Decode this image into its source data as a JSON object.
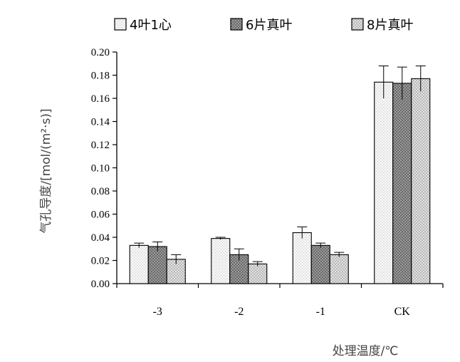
{
  "chart_data": {
    "type": "bar",
    "categories": [
      "-3",
      "-2",
      "-1",
      "CK"
    ],
    "series": [
      {
        "name": "4叶1心",
        "values": [
          0.033,
          0.039,
          0.044,
          0.174
        ],
        "errors": [
          0.002,
          0.001,
          0.005,
          0.014
        ],
        "pattern": "dots-light"
      },
      {
        "name": "6片真叶",
        "values": [
          0.032,
          0.025,
          0.033,
          0.173
        ],
        "errors": [
          0.004,
          0.005,
          0.002,
          0.014
        ],
        "pattern": "crosshatch-dark"
      },
      {
        "name": "8片真叶",
        "values": [
          0.021,
          0.017,
          0.025,
          0.177
        ],
        "errors": [
          0.004,
          0.002,
          0.002,
          0.011
        ],
        "pattern": "checker-medium"
      }
    ],
    "xlabel": "处理温度/℃",
    "ylabel": "气孔导度/[mol/(m²·s)]",
    "ylim": [
      0,
      0.2
    ],
    "yticks": [
      "0.00",
      "0.02",
      "0.04",
      "0.06",
      "0.08",
      "0.10",
      "0.12",
      "0.14",
      "0.16",
      "0.18",
      "0.20"
    ],
    "grid": false,
    "legend_position": "top"
  }
}
